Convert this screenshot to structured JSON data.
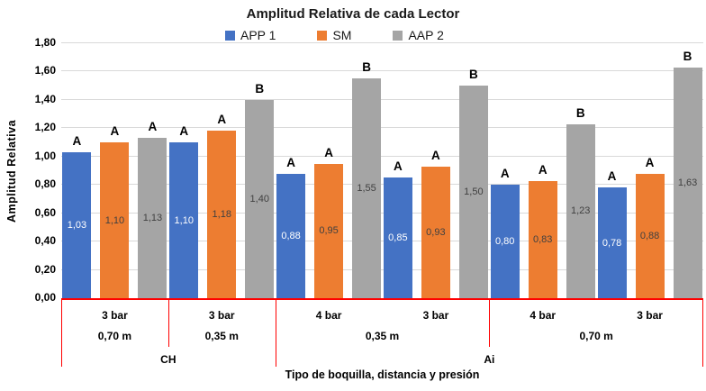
{
  "chart_data": {
    "type": "bar",
    "title": "Amplitud Relativa de cada Lector",
    "xlabel": "Tipo de boquilla, distancia y presión",
    "ylabel": "Amplitud Relativa",
    "ylim": [
      0,
      1.8
    ],
    "ytick_step": 0.2,
    "ytick_labels": [
      "0,00",
      "0,20",
      "0,40",
      "0,60",
      "0,80",
      "1,00",
      "1,20",
      "1,40",
      "1,60",
      "1,80"
    ],
    "grid": true,
    "gridline_color": "#d9d9d9",
    "legend_position": "top",
    "n_groups": 6,
    "series": [
      {
        "name": "APP 1",
        "color": "#4472C4",
        "value_label_color": "#ffffff",
        "values": [
          1.03,
          1.1,
          0.88,
          0.85,
          0.8,
          0.78
        ],
        "value_labels": [
          "1,03",
          "1,10",
          "0,88",
          "0,85",
          "0,80",
          "0,78"
        ],
        "sig_letters": [
          "A",
          "A",
          "A",
          "A",
          "A",
          "A"
        ]
      },
      {
        "name": "SM",
        "color": "#ED7D31",
        "value_label_color": "#404040",
        "values": [
          1.1,
          1.18,
          0.95,
          0.93,
          0.83,
          0.88
        ],
        "value_labels": [
          "1,10",
          "1,18",
          "0,95",
          "0,93",
          "0,83",
          "0,88"
        ],
        "sig_letters": [
          "A",
          "A",
          "A",
          "A",
          "A",
          "A"
        ]
      },
      {
        "name": "AAP 2",
        "color": "#A5A5A5",
        "value_label_color": "#404040",
        "values": [
          1.13,
          1.4,
          1.55,
          1.5,
          1.23,
          1.63
        ],
        "value_labels": [
          "1,13",
          "1,40",
          "1,55",
          "1,50",
          "1,23",
          "1,63"
        ],
        "sig_letters": [
          "A",
          "B",
          "B",
          "B",
          "B",
          "B"
        ]
      }
    ],
    "axis_table": {
      "border_color": "#FF0000",
      "pressure_row": [
        "3 bar",
        "3 bar",
        "4 bar",
        "3 bar",
        "4 bar",
        "3 bar"
      ],
      "distance_row": [
        {
          "label": "0,70 m",
          "span": 1
        },
        {
          "label": "0,35 m",
          "span": 1
        },
        {
          "label": "0,35 m",
          "span": 2
        },
        {
          "label": "0,70 m",
          "span": 2
        }
      ],
      "nozzle_row": [
        {
          "label": "CH",
          "span": 2
        },
        {
          "label": "Ai",
          "span": 4
        }
      ]
    }
  }
}
